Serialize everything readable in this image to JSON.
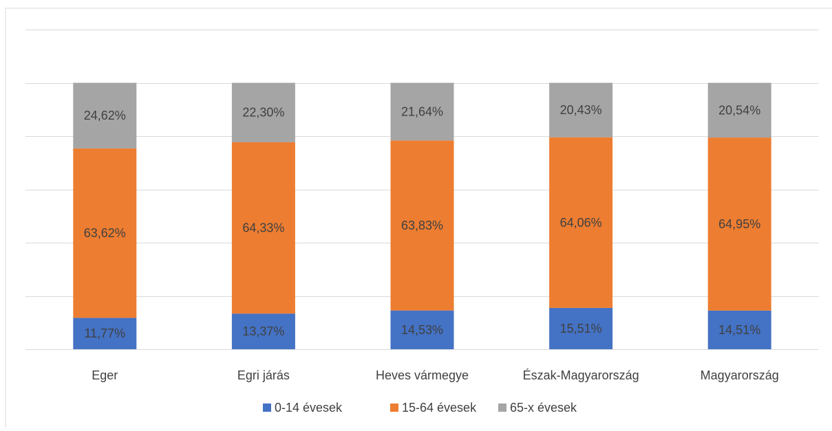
{
  "chart_data": {
    "type": "bar",
    "stacked": true,
    "categories": [
      "Eger",
      "Egri járás",
      "Heves vármegye",
      "Észak-Magyarország",
      "Magyarország"
    ],
    "series": [
      {
        "name": "0-14 évesek",
        "values": [
          11.77,
          13.37,
          14.53,
          15.51,
          14.51
        ],
        "labels": [
          "11,77%",
          "13,37%",
          "14,53%",
          "15,51%",
          "14,51%"
        ],
        "color": "#4472c4"
      },
      {
        "name": "15-64 évesek",
        "values": [
          63.62,
          64.33,
          63.83,
          64.06,
          64.95
        ],
        "labels": [
          "63,62%",
          "64,33%",
          "63,83%",
          "64,06%",
          "64,95%"
        ],
        "color": "#ed7d31"
      },
      {
        "name": "65-x évesek",
        "values": [
          24.62,
          22.3,
          21.64,
          20.43,
          20.54
        ],
        "labels": [
          "24,62%",
          "22,30%",
          "21,64%",
          "20,43%",
          "20,54%"
        ],
        "color": "#a5a5a5"
      }
    ],
    "ylim": [
      0,
      120
    ],
    "y_gridlines": [
      0,
      20,
      40,
      60,
      80,
      100,
      120
    ],
    "grid": true,
    "legend_position": "bottom",
    "title": "",
    "xlabel": "",
    "ylabel": ""
  }
}
